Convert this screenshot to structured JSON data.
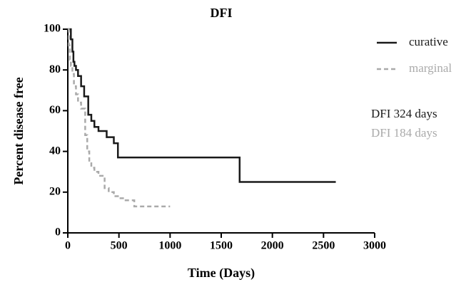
{
  "chart_data": {
    "type": "line",
    "title": "DFI",
    "x_label": "Time (Days)",
    "y_label": "Percent disease free",
    "step": true,
    "series": [
      {
        "name": "curative",
        "color": "#1a1a1a",
        "dash": false,
        "x": [
          0,
          30,
          45,
          55,
          65,
          80,
          100,
          130,
          160,
          200,
          230,
          260,
          300,
          380,
          450,
          490,
          1680,
          2620
        ],
        "values": [
          100,
          95,
          89,
          84,
          82,
          80,
          77,
          72,
          67,
          58,
          55,
          52,
          50,
          47,
          44,
          37,
          25,
          25
        ]
      },
      {
        "name": "marginal",
        "color": "#aaaaaa",
        "dash": true,
        "x": [
          0,
          10,
          20,
          30,
          45,
          60,
          80,
          100,
          130,
          170,
          190,
          210,
          230,
          260,
          300,
          360,
          400,
          450,
          500,
          550,
          650,
          1000
        ],
        "values": [
          100,
          92,
          85,
          82,
          78,
          72,
          68,
          64,
          61,
          48,
          40,
          35,
          32,
          30,
          28,
          22,
          20,
          18,
          17,
          16,
          13,
          13
        ]
      }
    ],
    "annotations": [
      {
        "text": "DFI 324 days",
        "color": "#1a1a1a"
      },
      {
        "text": "DFI 184 days",
        "color": "#aaaaaa"
      }
    ],
    "xlim": [
      0,
      3000
    ],
    "xticks": [
      0,
      500,
      1000,
      1500,
      2000,
      2500,
      3000
    ],
    "ylim": [
      0,
      100
    ],
    "yticks": [
      0,
      20,
      40,
      60,
      80,
      100
    ],
    "grid": false
  }
}
